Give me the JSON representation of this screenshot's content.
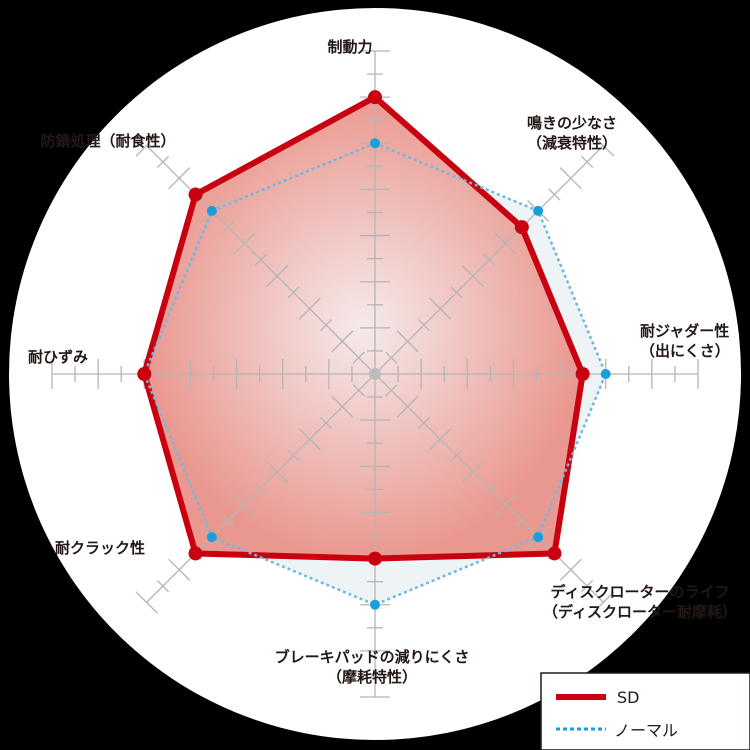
{
  "chart_data": {
    "type": "radar",
    "title": "",
    "axes": [
      {
        "label": [
          "制動力"
        ]
      },
      {
        "label": [
          "鳴きの少なさ",
          "（減衰特性）"
        ]
      },
      {
        "label": [
          "耐ジャダー性",
          "（出にくさ）"
        ]
      },
      {
        "label": [
          "ディスクローターのライフ",
          "（ディスクローター耐摩耗）"
        ]
      },
      {
        "label": [
          "ブレーキパッドの減りにくさ",
          "（摩耗特性）"
        ]
      },
      {
        "label": [
          "耐クラック性"
        ]
      },
      {
        "label": [
          "耐ひずみ"
        ]
      },
      {
        "label": [
          "防錆処理（耐食性）"
        ]
      }
    ],
    "range": [
      0,
      7
    ],
    "tick_step": 0.5,
    "series": [
      {
        "name": "SD",
        "values": [
          6.0,
          4.5,
          4.5,
          5.5,
          4.0,
          5.5,
          5.0,
          5.5
        ],
        "color": "#c8000f",
        "style": "solid"
      },
      {
        "name": "ノーマル",
        "values": [
          5.0,
          5.0,
          5.0,
          5.0,
          5.0,
          5.0,
          5.0,
          5.0
        ],
        "color": "#1a9fdc",
        "style": "dotted"
      }
    ],
    "legend_position": "bottom-right"
  }
}
